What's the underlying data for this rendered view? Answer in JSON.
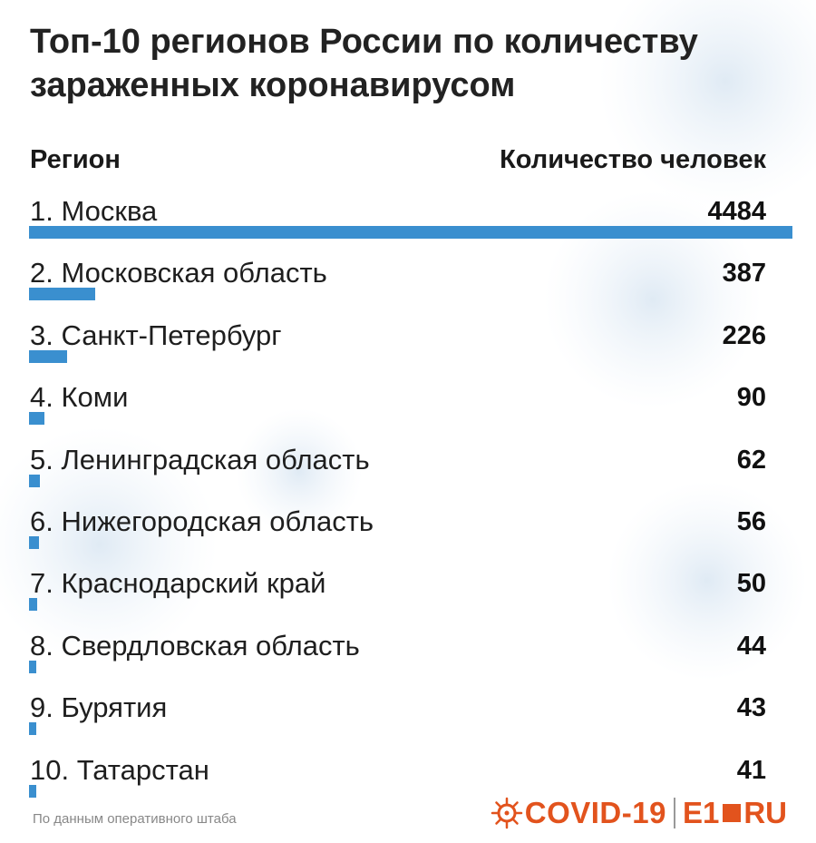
{
  "colors": {
    "bar": "#3a8fcf",
    "brand": "#e2531d",
    "text": "#1a1a1a"
  },
  "header": {
    "title": "Топ-10 регионов России по количеству\nзараженных коронавирусом",
    "column_region": "Регион",
    "column_count": "Количество человек"
  },
  "chart_data": {
    "type": "bar",
    "title": "Топ-10 регионов России по количеству зараженных коронавирусом",
    "xlabel": "Регион",
    "ylabel": "Количество человек",
    "categories": [
      "1. Москва",
      "2. Московская область",
      "3. Санкт-Петербург",
      "4. Коми",
      "5. Ленинградская область",
      "6. Нижегородская область",
      "7. Краснодарский край",
      "8. Свердловская область",
      "9. Бурятия",
      "10. Татарстан"
    ],
    "values": [
      4484,
      387,
      226,
      90,
      62,
      56,
      50,
      44,
      43,
      41
    ],
    "orientation": "horizontal"
  },
  "footer": {
    "source": "По данным оперативного штаба",
    "brand_covid": "COVID-19",
    "brand_e1": "E1",
    "brand_ru": "RU"
  }
}
